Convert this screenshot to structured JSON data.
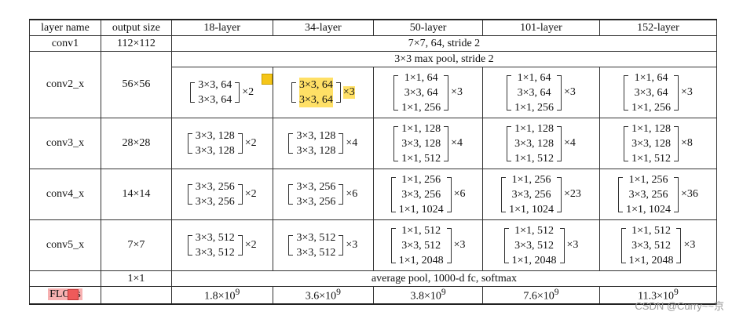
{
  "headers": [
    "layer name",
    "output size",
    "18-layer",
    "34-layer",
    "50-layer",
    "101-layer",
    "152-layer"
  ],
  "conv1": {
    "name": "conv1",
    "size": "112×112",
    "desc": "7×7, 64, stride 2"
  },
  "pool": {
    "desc": "3×3 max pool, stride 2"
  },
  "blocks": [
    {
      "name": "conv2_x",
      "size": "56×56",
      "cells": [
        {
          "lines": [
            "3×3, 64",
            "3×3, 64"
          ],
          "mult": "×2"
        },
        {
          "lines": [
            "3×3, 64",
            "3×3, 64"
          ],
          "mult": "×3"
        },
        {
          "lines": [
            "1×1, 64",
            "3×3, 64",
            "1×1, 256"
          ],
          "mult": "×3"
        },
        {
          "lines": [
            "1×1, 64",
            "3×3, 64",
            "1×1, 256"
          ],
          "mult": "×3"
        },
        {
          "lines": [
            "1×1, 64",
            "3×3, 64",
            "1×1, 256"
          ],
          "mult": "×3"
        }
      ]
    },
    {
      "name": "conv3_x",
      "size": "28×28",
      "cells": [
        {
          "lines": [
            "3×3, 128",
            "3×3, 128"
          ],
          "mult": "×2"
        },
        {
          "lines": [
            "3×3, 128",
            "3×3, 128"
          ],
          "mult": "×4"
        },
        {
          "lines": [
            "1×1, 128",
            "3×3, 128",
            "1×1, 512"
          ],
          "mult": "×4"
        },
        {
          "lines": [
            "1×1, 128",
            "3×3, 128",
            "1×1, 512"
          ],
          "mult": "×4"
        },
        {
          "lines": [
            "1×1, 128",
            "3×3, 128",
            "1×1, 512"
          ],
          "mult": "×8"
        }
      ]
    },
    {
      "name": "conv4_x",
      "size": "14×14",
      "cells": [
        {
          "lines": [
            "3×3, 256",
            "3×3, 256"
          ],
          "mult": "×2"
        },
        {
          "lines": [
            "3×3, 256",
            "3×3, 256"
          ],
          "mult": "×6"
        },
        {
          "lines": [
            "1×1, 256",
            "3×3, 256",
            "1×1, 1024"
          ],
          "mult": "×6"
        },
        {
          "lines": [
            "1×1, 256",
            "3×3, 256",
            "1×1, 1024"
          ],
          "mult": "×23"
        },
        {
          "lines": [
            "1×1, 256",
            "3×3, 256",
            "1×1, 1024"
          ],
          "mult": "×36"
        }
      ]
    },
    {
      "name": "conv5_x",
      "size": "7×7",
      "cells": [
        {
          "lines": [
            "3×3, 512",
            "3×3, 512"
          ],
          "mult": "×2"
        },
        {
          "lines": [
            "3×3, 512",
            "3×3, 512"
          ],
          "mult": "×3"
        },
        {
          "lines": [
            "1×1, 512",
            "3×3, 512",
            "1×1, 2048"
          ],
          "mult": "×3"
        },
        {
          "lines": [
            "1×1, 512",
            "3×3, 512",
            "1×1, 2048"
          ],
          "mult": "×3"
        },
        {
          "lines": [
            "1×1, 512",
            "3×3, 512",
            "1×1, 2048"
          ],
          "mult": "×3"
        }
      ]
    }
  ],
  "avg": {
    "size": "1×1",
    "desc": "average pool, 1000-d fc, softmax"
  },
  "flops": {
    "label": "FLOPs",
    "values": [
      {
        "base": "1.8×10",
        "exp": "9"
      },
      {
        "base": "3.6×10",
        "exp": "9"
      },
      {
        "base": "3.8×10",
        "exp": "9"
      },
      {
        "base": "7.6×10",
        "exp": "9"
      },
      {
        "base": "11.3×10",
        "exp": "9"
      }
    ]
  },
  "watermark": "CSDN @Curry~~京",
  "highlight_colors": {
    "yellow": "#ffe066",
    "red": "#f7b1b1"
  }
}
